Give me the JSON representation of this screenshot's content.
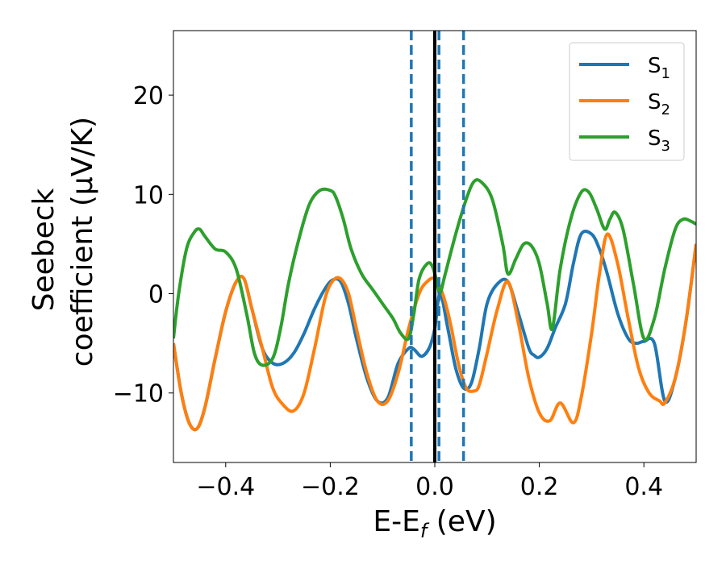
{
  "chart_data": {
    "type": "line",
    "title": "",
    "xlabel": "E-E",
    "xlabel_sub": "f",
    "xlabel_unit": " (eV)",
    "ylabel_line1": "Seebeck",
    "ylabel_line2": "coefficient  (μV/K)",
    "xlim": [
      -0.5,
      0.5
    ],
    "ylim": [
      -17,
      26.5
    ],
    "x_ticks": [
      -0.4,
      -0.2,
      0.0,
      0.2,
      0.4
    ],
    "x_tick_labels": [
      "−0.4",
      "−0.2",
      "0.0",
      "0.2",
      "0.4"
    ],
    "y_ticks": [
      -10,
      0,
      10,
      20
    ],
    "y_tick_labels": [
      "−10",
      "0",
      "10",
      "20"
    ],
    "grid": false,
    "legend_position": "top-right",
    "vlines": [
      {
        "x": 0.0,
        "style": "solid",
        "color": "#000000"
      },
      {
        "x": -0.045,
        "style": "dashed",
        "color": "#1f77b4"
      },
      {
        "x": 0.008,
        "style": "dashed",
        "color": "#1f77b4"
      },
      {
        "x": 0.055,
        "style": "dashed",
        "color": "#1f77b4"
      }
    ],
    "series": [
      {
        "name": "S",
        "sub": "1",
        "color": "#1f77b4",
        "x": [
          -0.5,
          -0.485,
          -0.47,
          -0.455,
          -0.44,
          -0.42,
          -0.4,
          -0.38,
          -0.365,
          -0.35,
          -0.33,
          -0.31,
          -0.29,
          -0.27,
          -0.25,
          -0.23,
          -0.21,
          -0.195,
          -0.18,
          -0.165,
          -0.15,
          -0.13,
          -0.11,
          -0.09,
          -0.07,
          -0.05,
          -0.04,
          -0.025,
          -0.01,
          0.0,
          0.01,
          0.025,
          0.04,
          0.055,
          0.07,
          0.085,
          0.1,
          0.12,
          0.14,
          0.16,
          0.18,
          0.19,
          0.2,
          0.215,
          0.23,
          0.25,
          0.265,
          0.28,
          0.3,
          0.315,
          0.33,
          0.35,
          0.37,
          0.385,
          0.4,
          0.42,
          0.44,
          0.46,
          0.48,
          0.5
        ],
        "y": [
          -5,
          -10,
          -13,
          -13.6,
          -11.5,
          -6.5,
          -1.8,
          1.2,
          1.5,
          -1.5,
          -5.5,
          -7.0,
          -7.0,
          -6.0,
          -4.0,
          -1.5,
          0.5,
          1.4,
          1.2,
          -1.0,
          -4.5,
          -8.5,
          -10.8,
          -10.5,
          -7.0,
          -5.5,
          -5.6,
          -6.3,
          -5.4,
          -3.5,
          0.0,
          -3.5,
          -7.5,
          -9.5,
          -9.0,
          -5.5,
          -1.0,
          1.0,
          1.2,
          -2.0,
          -5.5,
          -6.2,
          -6.4,
          -5.5,
          -3.5,
          -1.0,
          3.0,
          6.0,
          6.0,
          4.5,
          2.0,
          -2.0,
          -4.5,
          -5.0,
          -4.8,
          -5.0,
          -10.8,
          -8.5,
          -3.0,
          5.0
        ]
      },
      {
        "name": "S",
        "sub": "2",
        "color": "#ff7f0e",
        "x": [
          -0.5,
          -0.485,
          -0.47,
          -0.455,
          -0.44,
          -0.42,
          -0.4,
          -0.38,
          -0.365,
          -0.35,
          -0.33,
          -0.31,
          -0.29,
          -0.27,
          -0.25,
          -0.23,
          -0.21,
          -0.195,
          -0.18,
          -0.165,
          -0.15,
          -0.13,
          -0.11,
          -0.09,
          -0.07,
          -0.05,
          -0.03,
          -0.015,
          0.0,
          0.015,
          0.03,
          0.045,
          0.06,
          0.075,
          0.085,
          0.1,
          0.12,
          0.14,
          0.16,
          0.18,
          0.2,
          0.22,
          0.24,
          0.265,
          0.28,
          0.3,
          0.315,
          0.33,
          0.35,
          0.37,
          0.39,
          0.41,
          0.43,
          0.44,
          0.46,
          0.48,
          0.5
        ],
        "y": [
          -5,
          -10,
          -13,
          -13.6,
          -11.5,
          -6.5,
          -1.8,
          1.2,
          1.5,
          -1.5,
          -5.5,
          -9.5,
          -11.2,
          -11.8,
          -10.0,
          -5.5,
          -0.5,
          1.3,
          1.5,
          0.0,
          -3.5,
          -8.0,
          -10.8,
          -10.8,
          -8.0,
          -3.5,
          0.0,
          1.2,
          1.5,
          0.0,
          -3.0,
          -7.0,
          -9.5,
          -9.8,
          -9.2,
          -6.0,
          -1.5,
          1.2,
          -3.0,
          -8.5,
          -12.0,
          -12.8,
          -11.0,
          -13.0,
          -10.5,
          -4.0,
          2.0,
          6.0,
          3.0,
          -2.5,
          -7.5,
          -10.0,
          -10.8,
          -11.0,
          -8.5,
          -3.0,
          5.0
        ]
      },
      {
        "name": "S",
        "sub": "3",
        "color": "#2ca02c",
        "x": [
          -0.5,
          -0.49,
          -0.475,
          -0.46,
          -0.45,
          -0.44,
          -0.42,
          -0.4,
          -0.38,
          -0.36,
          -0.345,
          -0.33,
          -0.31,
          -0.295,
          -0.28,
          -0.26,
          -0.24,
          -0.22,
          -0.2,
          -0.19,
          -0.175,
          -0.16,
          -0.14,
          -0.12,
          -0.1,
          -0.08,
          -0.065,
          -0.05,
          -0.04,
          -0.03,
          -0.015,
          -0.005,
          0.005,
          0.01,
          0.02,
          0.04,
          0.06,
          0.075,
          0.09,
          0.11,
          0.13,
          0.14,
          0.155,
          0.17,
          0.185,
          0.2,
          0.215,
          0.225,
          0.24,
          0.26,
          0.28,
          0.295,
          0.31,
          0.325,
          0.335,
          0.345,
          0.36,
          0.38,
          0.4,
          0.42,
          0.44,
          0.46,
          0.475,
          0.49,
          0.5
        ],
        "y": [
          -4.5,
          0.0,
          4.5,
          6.2,
          6.5,
          5.8,
          4.5,
          4.2,
          2.5,
          -2.0,
          -6.0,
          -7.2,
          -6.5,
          -3.5,
          1.0,
          5.5,
          9.0,
          10.4,
          10.4,
          9.8,
          7.5,
          4.5,
          2.0,
          0.5,
          -1.0,
          -2.5,
          -4.0,
          -4.5,
          -2.0,
          1.5,
          3.0,
          2.8,
          1.0,
          0.0,
          2.0,
          6.0,
          9.5,
          11.3,
          11.2,
          9.5,
          5.0,
          2.0,
          3.5,
          5.0,
          4.8,
          3.0,
          -1.0,
          -3.5,
          2.5,
          7.5,
          10.2,
          10.2,
          8.5,
          6.5,
          7.5,
          8.2,
          6.5,
          1.0,
          -4.5,
          -2.5,
          2.5,
          6.5,
          7.5,
          7.3,
          7.0
        ]
      }
    ]
  }
}
